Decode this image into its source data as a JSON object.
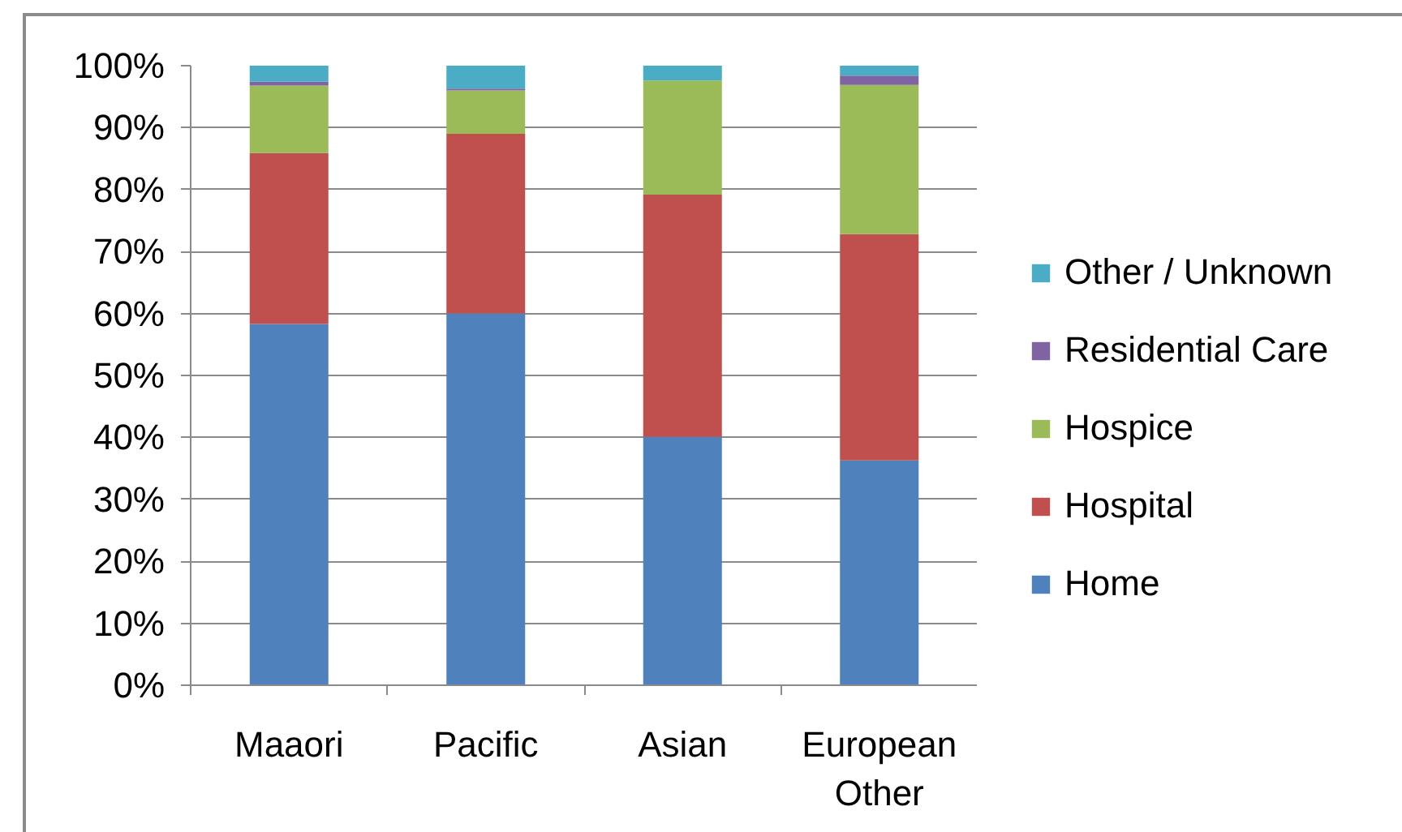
{
  "chart_data": {
    "type": "bar",
    "stacked": true,
    "categories": [
      "Maaori",
      "Pacific",
      "Asian",
      "European Other"
    ],
    "series": [
      {
        "name": "Home",
        "color": "#4f81bd",
        "values": [
          58.3,
          60.0,
          40.1,
          36.3
        ]
      },
      {
        "name": "Hospital",
        "color": "#c0504d",
        "values": [
          27.6,
          29.0,
          39.1,
          36.5
        ]
      },
      {
        "name": "Hospice",
        "color": "#9bbb59",
        "values": [
          10.9,
          7.0,
          18.4,
          24.1
        ]
      },
      {
        "name": "Residential Care",
        "color": "#8064a2",
        "values": [
          0.6,
          0.3,
          0,
          1.5
        ]
      },
      {
        "name": "Other / Unknown",
        "color": "#4bacc6",
        "values": [
          2.6,
          3.7,
          2.4,
          1.6
        ]
      }
    ],
    "ylim": [
      0,
      100
    ],
    "yticks": [
      {
        "value": 0,
        "label": "0%"
      },
      {
        "value": 10,
        "label": "10%"
      },
      {
        "value": 20,
        "label": "20%"
      },
      {
        "value": 30,
        "label": "30%"
      },
      {
        "value": 40,
        "label": "40%"
      },
      {
        "value": 50,
        "label": "50%"
      },
      {
        "value": 60,
        "label": "60%"
      },
      {
        "value": 70,
        "label": "70%"
      },
      {
        "value": 80,
        "label": "80%"
      },
      {
        "value": 90,
        "label": "90%"
      },
      {
        "value": 100,
        "label": "100%"
      }
    ],
    "grid": "y",
    "legend": "right"
  }
}
